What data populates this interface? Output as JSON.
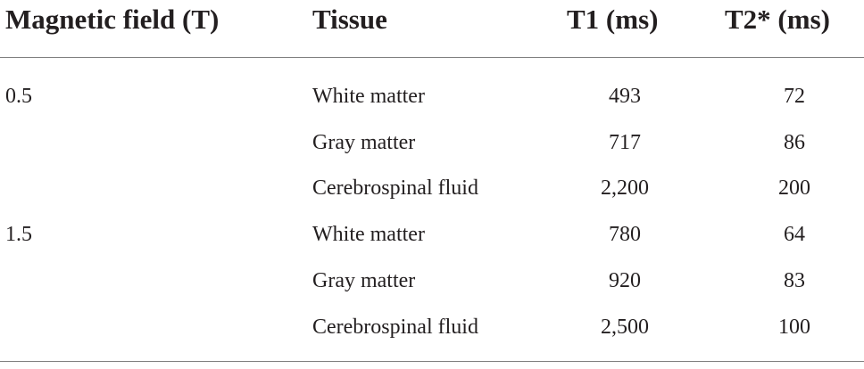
{
  "table": {
    "headers": {
      "field": "Magnetic field (T)",
      "tissue": "Tissue",
      "t1": "T1 (ms)",
      "t2": "T2* (ms)"
    },
    "rows": [
      {
        "field": "0.5",
        "tissue": "White matter",
        "t1": "493",
        "t2": "72"
      },
      {
        "field": "",
        "tissue": "Gray matter",
        "t1": "717",
        "t2": "86"
      },
      {
        "field": "",
        "tissue": "Cerebrospinal fluid",
        "t1": "2,200",
        "t2": "200"
      },
      {
        "field": "1.5",
        "tissue": "White matter",
        "t1": "780",
        "t2": "64"
      },
      {
        "field": "",
        "tissue": "Gray matter",
        "t1": "920",
        "t2": "83"
      },
      {
        "field": "",
        "tissue": "Cerebrospinal fluid",
        "t1": "2,500",
        "t2": "100"
      }
    ]
  }
}
